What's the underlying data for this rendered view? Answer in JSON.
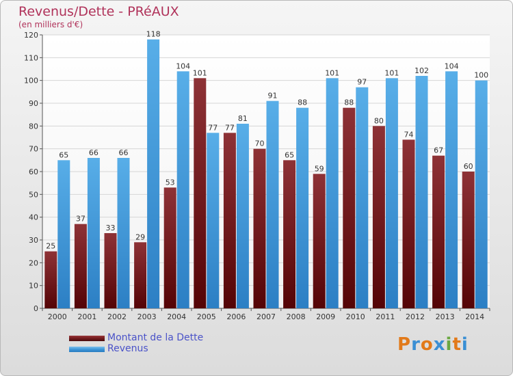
{
  "header": {
    "title": "Revenus/Dette - PRéAUX",
    "subtitle": "(en milliers d'€)"
  },
  "colors": {
    "dette": "#7a1f22",
    "revenus": "#3d96d8"
  },
  "chart_data": {
    "type": "bar",
    "categories": [
      "2000",
      "2001",
      "2002",
      "2003",
      "2004",
      "2005",
      "2006",
      "2007",
      "2008",
      "2009",
      "2010",
      "2011",
      "2012",
      "2013",
      "2014"
    ],
    "series": [
      {
        "name": "Montant de la Dette",
        "values": [
          25,
          37,
          33,
          29,
          53,
          101,
          77,
          70,
          65,
          59,
          88,
          80,
          74,
          67,
          60
        ]
      },
      {
        "name": "Revenus",
        "values": [
          65,
          66,
          66,
          118,
          104,
          77,
          81,
          91,
          88,
          101,
          97,
          101,
          102,
          104,
          100
        ]
      }
    ],
    "ylim": [
      0,
      120
    ],
    "yticks": [
      0,
      10,
      20,
      30,
      40,
      50,
      60,
      70,
      80,
      90,
      100,
      110,
      120
    ],
    "grid": true,
    "legend_position": "bottom-left"
  },
  "legend": {
    "items": [
      {
        "label": "Montant de la Dette"
      },
      {
        "label": "Revenus"
      }
    ]
  },
  "logo": {
    "letters": [
      "P",
      "r",
      "o",
      "x",
      "i",
      "t",
      "i"
    ],
    "colors": [
      "#e27a1a",
      "#3a8fd4",
      "#e27a1a",
      "#3a8fd4",
      "#6aa842",
      "#e27a1a",
      "#3a8fd4"
    ]
  }
}
